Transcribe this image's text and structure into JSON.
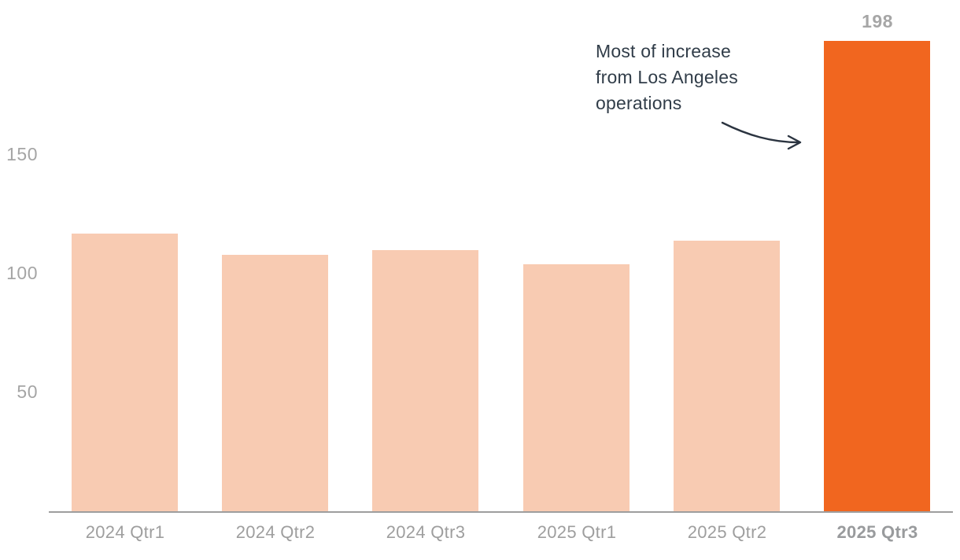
{
  "colors": {
    "background": "#ffffff",
    "bar_default": "#f8cbb2",
    "bar_highlight": "#f1661f",
    "axis_line": "#9e9e9e",
    "tick_label": "#a5a5a5",
    "x_label": "#9e9e9e",
    "x_label_highlight": "#999b9d",
    "value_label": "#a6a6a6",
    "annotation_text": "#313d49",
    "arrow": "#2b3440"
  },
  "annotation": {
    "lines": [
      "Most of increase",
      "from Los Angeles",
      "operations"
    ]
  },
  "chart_data": {
    "type": "bar",
    "categories": [
      "2024 Qtr1",
      "2024 Qtr2",
      "2024 Qtr3",
      "2025 Qtr1",
      "2025 Qtr2",
      "2025 Qtr3"
    ],
    "values": [
      117,
      108,
      110,
      104,
      114,
      198
    ],
    "highlight_index": 5,
    "value_labels": {
      "5": "198"
    },
    "title": "",
    "xlabel": "",
    "ylabel": "",
    "yticks": [
      50,
      100,
      150
    ],
    "ylim": [
      0,
      215
    ],
    "grid": false,
    "legend": null,
    "annotation_text": "Most of increase from Los Angeles operations",
    "annotation_target": "2025 Qtr3"
  }
}
